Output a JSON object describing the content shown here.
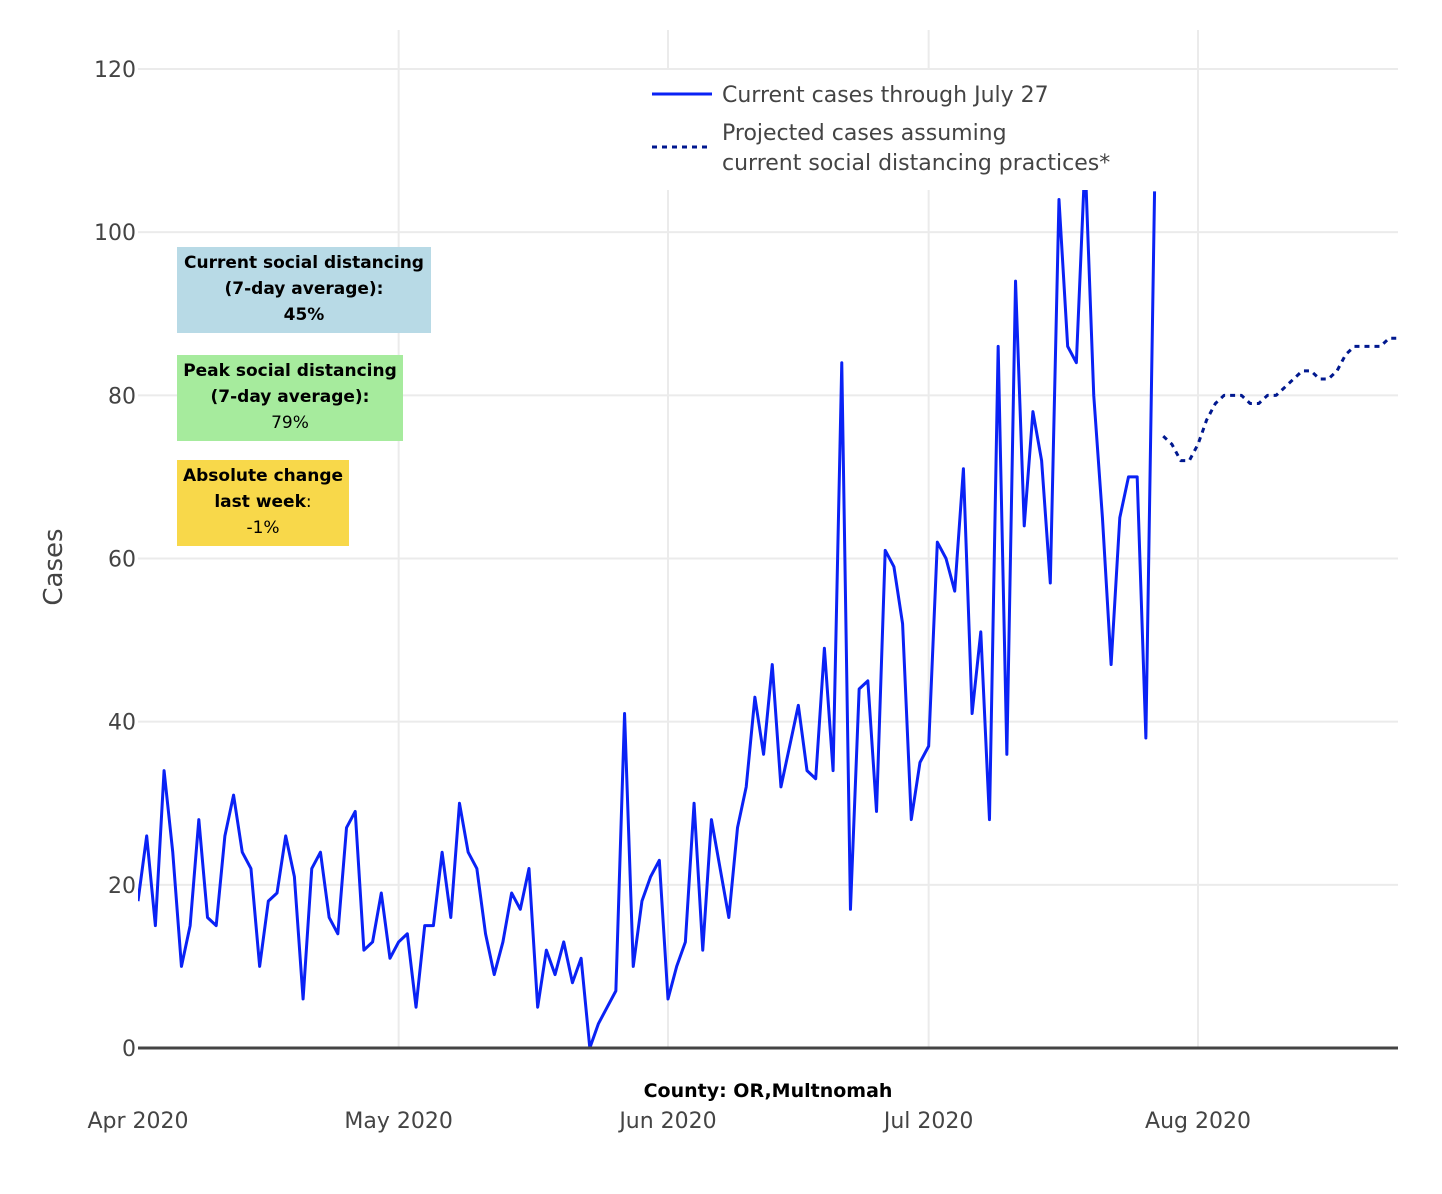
{
  "chart_data": {
    "type": "line",
    "title": "",
    "xlabel": "County: OR,Multnomah",
    "ylabel": "Cases",
    "ylim": [
      0,
      120
    ],
    "xlim": [
      "2020-04-01",
      "2020-08-24"
    ],
    "grid": true,
    "yticks": [
      0,
      20,
      40,
      60,
      80,
      100,
      120
    ],
    "xticks": [
      {
        "date": "2020-04-01",
        "label": "Apr 2020"
      },
      {
        "date": "2020-05-01",
        "label": "May 2020"
      },
      {
        "date": "2020-06-01",
        "label": "Jun 2020"
      },
      {
        "date": "2020-07-01",
        "label": "Jul 2020"
      },
      {
        "date": "2020-08-01",
        "label": "Aug 2020"
      }
    ],
    "legend": {
      "position": "top-center",
      "entries": [
        {
          "label": "Current cases through July 27",
          "style": "solid",
          "color": "#0a22f5"
        },
        {
          "label_lines": [
            "Projected cases assuming",
            "current social distancing practices*"
          ],
          "style": "dotted",
          "color": "#00188f"
        }
      ]
    },
    "series": [
      {
        "name": "Current cases through July 27",
        "start_date": "2020-04-01",
        "color": "#0a22f5",
        "values": [
          18,
          26,
          15,
          34,
          24,
          10,
          15,
          28,
          16,
          15,
          26,
          31,
          24,
          22,
          10,
          18,
          19,
          26,
          21,
          6,
          22,
          24,
          16,
          14,
          27,
          29,
          12,
          13,
          19,
          11,
          13,
          14,
          5,
          15,
          15,
          24,
          16,
          30,
          24,
          22,
          14,
          9,
          13,
          19,
          17,
          22,
          5,
          12,
          9,
          13,
          8,
          11,
          0,
          3,
          5,
          7,
          41,
          10,
          18,
          21,
          23,
          6,
          10,
          13,
          30,
          12,
          28,
          22,
          16,
          27,
          32,
          43,
          36,
          47,
          32,
          37,
          42,
          34,
          33,
          49,
          34,
          84,
          17,
          44,
          45,
          29,
          61,
          59,
          52,
          28,
          35,
          37,
          62,
          60,
          56,
          71,
          41,
          51,
          28,
          86,
          36,
          94,
          64,
          78,
          72,
          57,
          104,
          86,
          84,
          109,
          80,
          65,
          47,
          65,
          70,
          70,
          38,
          105
        ]
      },
      {
        "name": "Projected cases assuming current social distancing practices*",
        "start_date": "2020-07-28",
        "color": "#00188f",
        "values": [
          75,
          74,
          72,
          72,
          74,
          77,
          79,
          80,
          80,
          80,
          79,
          79,
          80,
          80,
          81,
          82,
          83,
          83,
          82,
          82,
          83,
          85,
          86,
          86,
          86,
          86,
          87,
          87
        ]
      }
    ]
  },
  "info_boxes": {
    "current": {
      "title_line1": "Current social distancing",
      "title_line2": "(7-day average):",
      "value": "45%",
      "color": "#b8dae6"
    },
    "peak": {
      "title_line1": "Peak social distancing",
      "title_line2": "(7-day average):",
      "value": "79%",
      "color": "#a6eb9d"
    },
    "change": {
      "title_line1": "Absolute change",
      "title_line2": "last week",
      "title_suffix": ":",
      "value": "-1%",
      "color": "#f8d84a"
    }
  }
}
